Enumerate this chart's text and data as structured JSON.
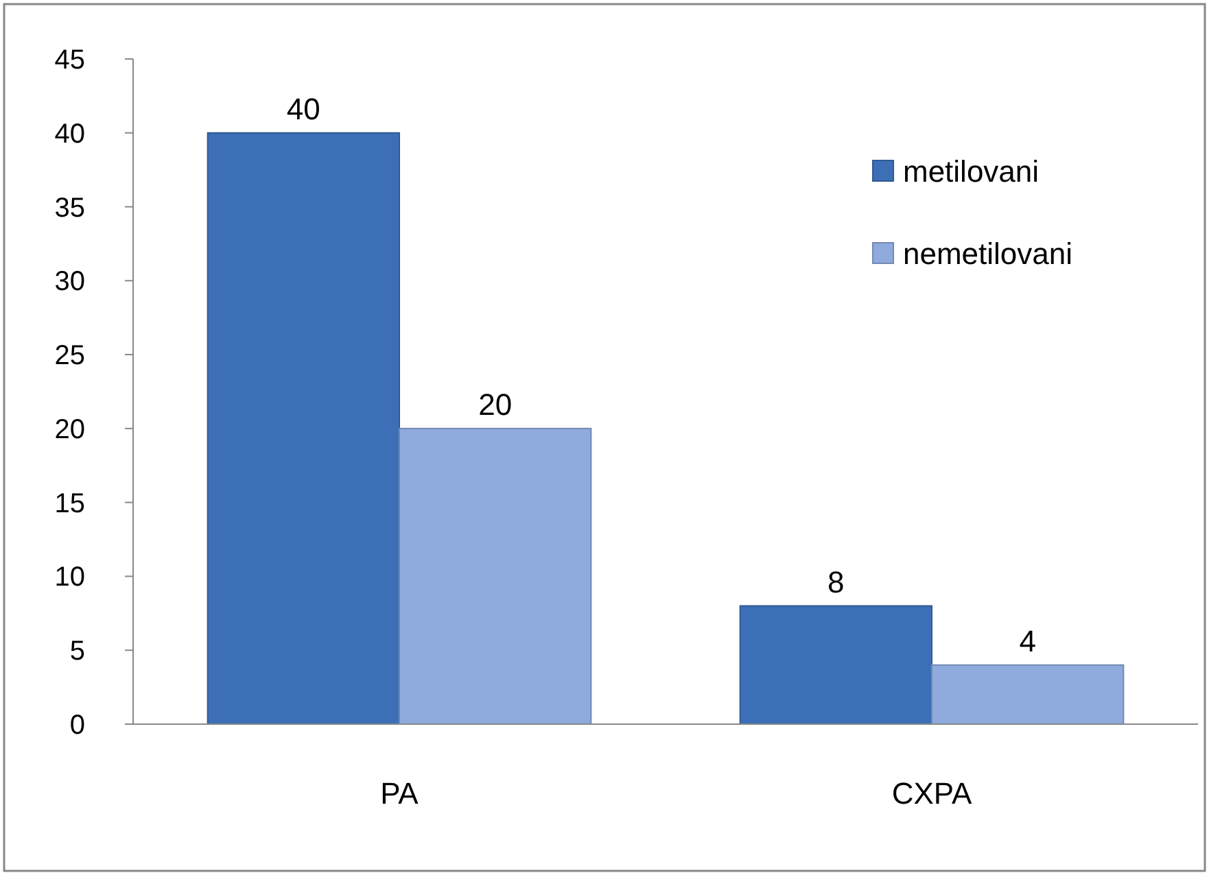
{
  "chart_data": {
    "type": "bar",
    "categories": [
      "PA",
      "CXPA"
    ],
    "series": [
      {
        "name": "metilovani",
        "color": "#3c6fb6",
        "values": [
          40,
          8
        ]
      },
      {
        "name": "nemetilovani",
        "color": "#8faadc",
        "values": [
          20,
          4
        ]
      }
    ],
    "ylim": [
      0,
      45
    ],
    "yticks": [
      0,
      5,
      10,
      15,
      20,
      25,
      30,
      35,
      40,
      45
    ],
    "grid": false,
    "legend": "top right",
    "data_labels": true
  }
}
